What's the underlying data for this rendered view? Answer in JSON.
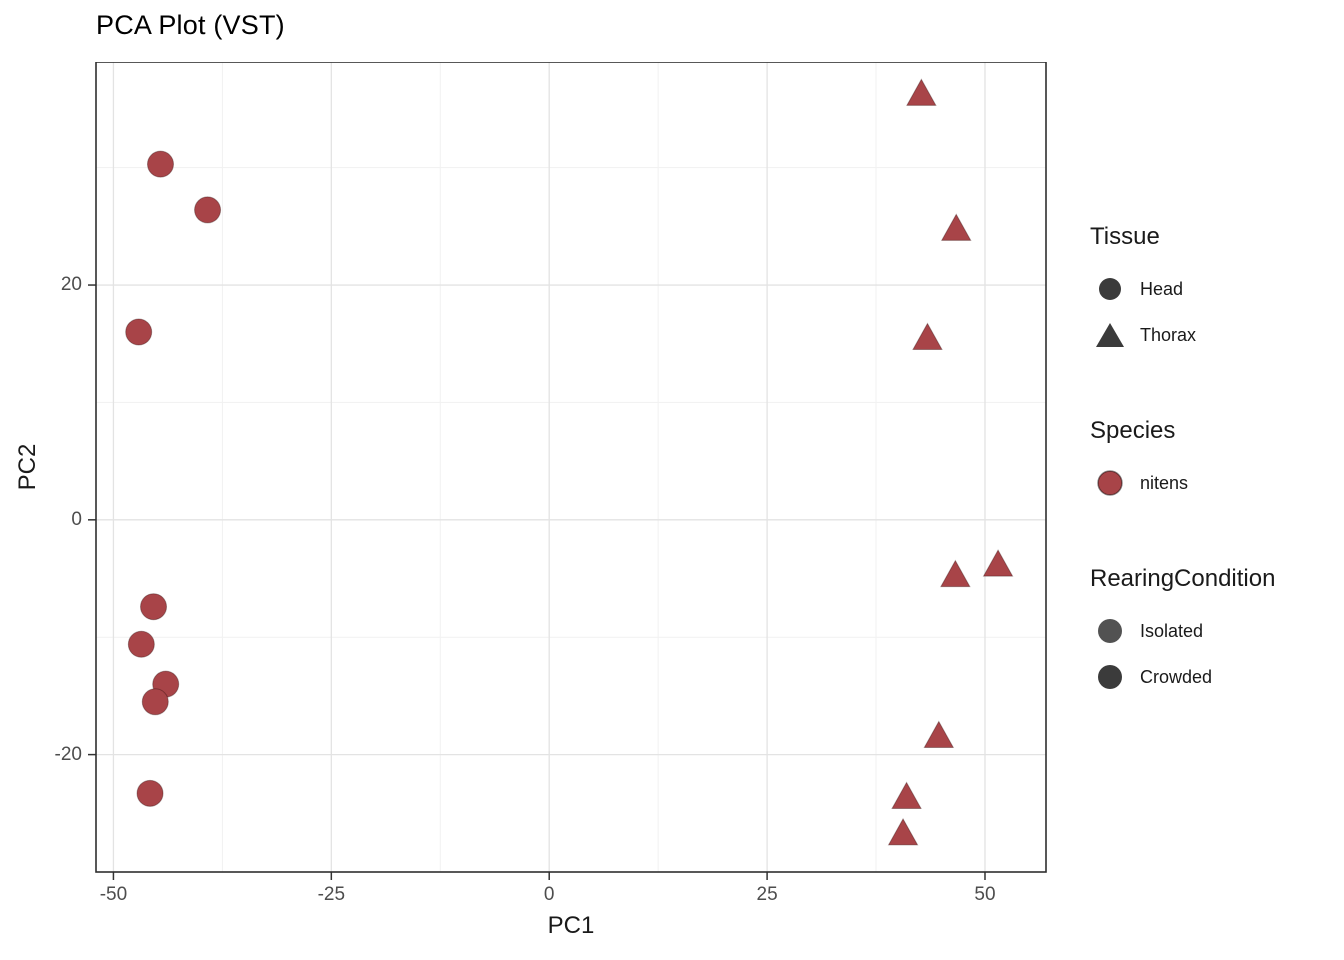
{
  "title": "PCA Plot (VST)",
  "chart_data": {
    "type": "scatter",
    "title": "PCA Plot (VST)",
    "xlabel": "PC1",
    "ylabel": "PC2",
    "xlim": [
      -52,
      57
    ],
    "ylim": [
      -30,
      39
    ],
    "x_ticks": [
      -50,
      -25,
      0,
      25,
      50
    ],
    "y_ticks": [
      -20,
      0,
      20
    ],
    "grid": true,
    "legend_position": "right",
    "point_color": "#A84448",
    "series": [
      {
        "name": "Head / nitens",
        "shape": "circle",
        "points": [
          [
            -44.6,
            30.3
          ],
          [
            -39.2,
            26.4
          ],
          [
            -47.1,
            16.0
          ],
          [
            -45.4,
            -7.4
          ],
          [
            -46.8,
            -10.6
          ],
          [
            -44.0,
            -14.0
          ],
          [
            -45.2,
            -15.5
          ],
          [
            -45.8,
            -23.3
          ]
        ]
      },
      {
        "name": "Thorax / nitens",
        "shape": "triangle",
        "points": [
          [
            42.7,
            36.2
          ],
          [
            46.7,
            24.7
          ],
          [
            43.4,
            15.4
          ],
          [
            51.5,
            -3.9
          ],
          [
            46.6,
            -4.8
          ],
          [
            44.7,
            -18.5
          ],
          [
            41.0,
            -23.7
          ],
          [
            40.6,
            -26.8
          ]
        ]
      }
    ]
  },
  "legend": {
    "tissue": {
      "title": "Tissue",
      "key_color": "#3B3B3B",
      "items": [
        {
          "label": "Head",
          "shape": "circle"
        },
        {
          "label": "Thorax",
          "shape": "triangle"
        }
      ]
    },
    "species": {
      "title": "Species",
      "key_color": "#A84448",
      "items": [
        {
          "label": "nitens",
          "shape": "circle"
        }
      ]
    },
    "rearing": {
      "title": "RearingCondition",
      "key_color": "#3B3B3B",
      "items": [
        {
          "label": "Isolated",
          "shape": "circle"
        },
        {
          "label": "Crowded",
          "shape": "circle"
        }
      ]
    }
  }
}
